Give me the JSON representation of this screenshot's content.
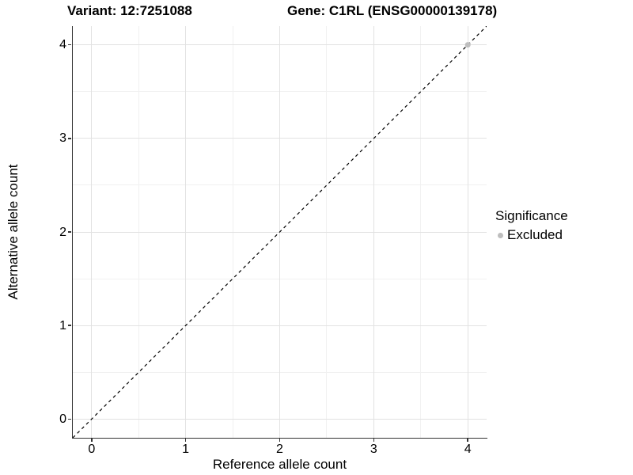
{
  "chart_data": {
    "type": "scatter",
    "title_left": "Variant: 12:7251088",
    "title_right": "Gene: C1RL (ENSG00000139178)",
    "xlabel": "Reference allele count",
    "ylabel": "Alternative allele count",
    "x_ticks": [
      "0",
      "1",
      "2",
      "3",
      "4"
    ],
    "y_ticks": [
      "0",
      "1",
      "2",
      "3",
      "4"
    ],
    "xlim": [
      -0.2,
      4.2
    ],
    "ylim": [
      -0.2,
      4.2
    ],
    "minor_grid_step": 0.5,
    "grid": "major and minor light-grey gridlines on white panel",
    "identity_line": {
      "style": "dashed",
      "color": "#000000",
      "from": [
        -0.2,
        -0.2
      ],
      "to": [
        4.2,
        4.2
      ]
    },
    "series": [
      {
        "name": "Excluded",
        "color": "#bebebe",
        "points": [
          [
            4,
            4
          ]
        ]
      }
    ],
    "legend": {
      "title": "Significance",
      "position": "right"
    }
  },
  "colors": {
    "background": "#ffffff",
    "axis_line": "#333333",
    "grid_major": "#e2e2e2",
    "grid_minor": "#f1f1f1",
    "text": "#000000",
    "excluded_point": "#bebebe"
  }
}
